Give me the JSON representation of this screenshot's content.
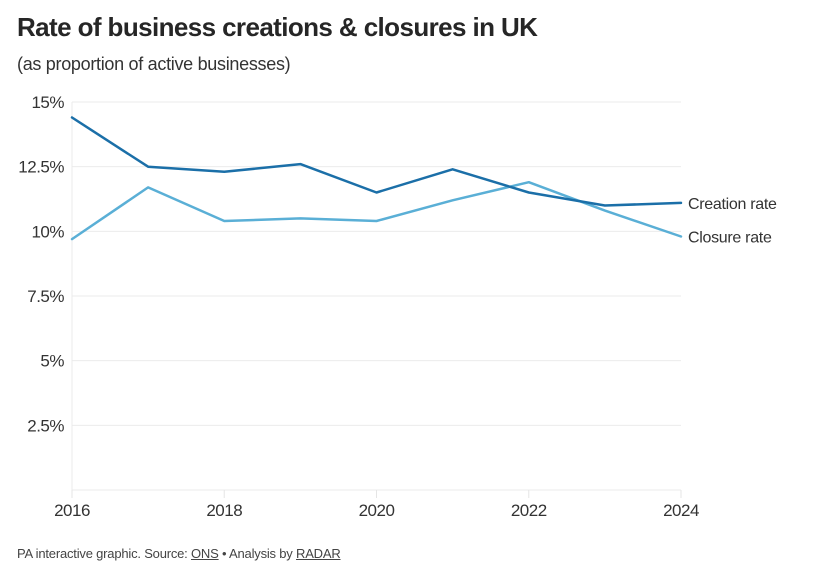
{
  "chart_data": {
    "type": "line",
    "title": "Rate of business creations & closures in UK",
    "subtitle": "(as proportion of active businesses)",
    "xlabel": "",
    "ylabel": "",
    "x": [
      2016,
      2017,
      2018,
      2019,
      2020,
      2021,
      2022,
      2023,
      2024
    ],
    "x_tick_labels": [
      "2016",
      "2018",
      "2020",
      "2022",
      "2024"
    ],
    "x_tick_values": [
      2016,
      2018,
      2020,
      2022,
      2024
    ],
    "y_tick_labels": [
      "15%",
      "12.5%",
      "10%",
      "7.5%",
      "5%",
      "2.5%"
    ],
    "y_tick_values": [
      15,
      12.5,
      10,
      7.5,
      5,
      2.5
    ],
    "ylim": [
      0,
      15
    ],
    "xlim": [
      2016,
      2024
    ],
    "grid": true,
    "legend": "inline-right",
    "series": [
      {
        "name": "Creation rate",
        "color": "#1b6fa8",
        "values": [
          14.4,
          12.5,
          12.3,
          12.6,
          11.5,
          12.4,
          11.5,
          11.0,
          11.1
        ]
      },
      {
        "name": "Closure rate",
        "color": "#5aafd6",
        "values": [
          9.7,
          11.7,
          10.4,
          10.5,
          10.4,
          11.2,
          11.9,
          10.8,
          9.8
        ]
      }
    ]
  },
  "footer": {
    "prefix": "PA interactive graphic. Source: ",
    "source_link": "ONS",
    "middle": " • Analysis by ",
    "analysis_link": "RADAR"
  }
}
